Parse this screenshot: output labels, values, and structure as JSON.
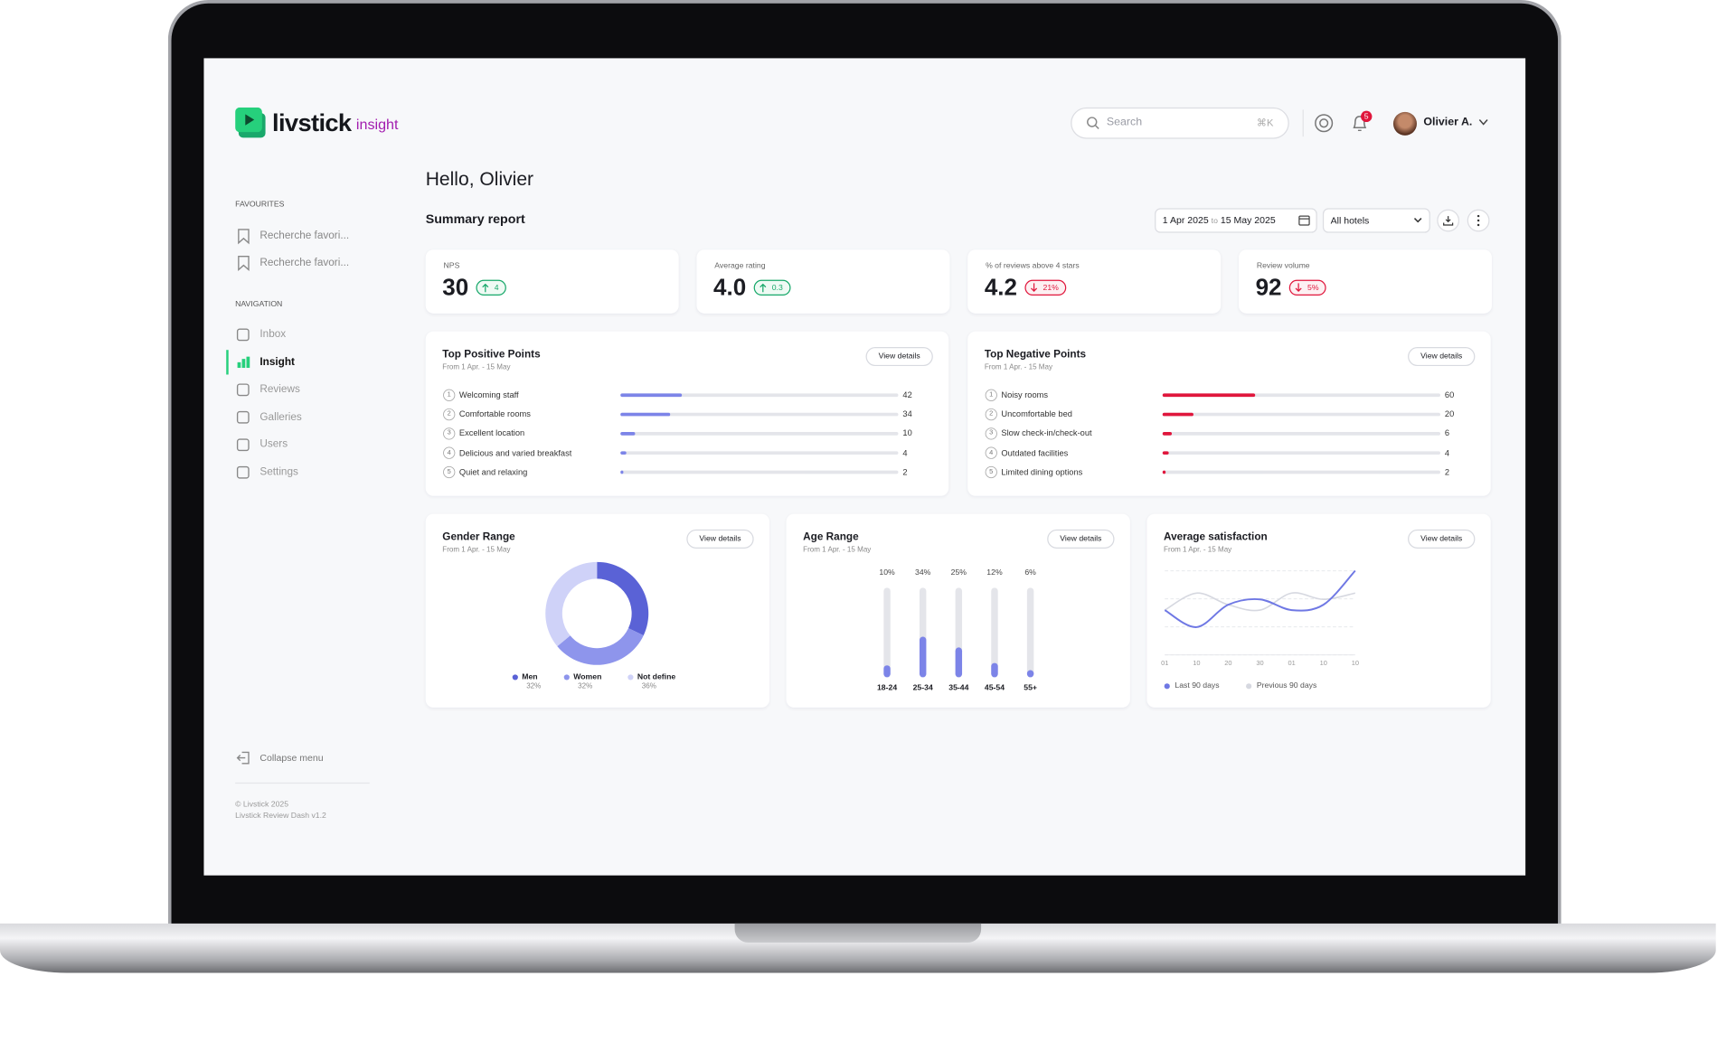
{
  "brand": {
    "name": "livstick",
    "product": "insight"
  },
  "header": {
    "search_placeholder": "Search",
    "shortcut": "⌘K",
    "notification_count": 5,
    "user": "Olivier A."
  },
  "sidebar": {
    "favourites_title": "FAVOURITES",
    "favourites": [
      "Recherche favori...",
      "Recherche favori..."
    ],
    "navigation_title": "NAVIGATION",
    "navigation": [
      "Inbox",
      "Insight",
      "Reviews",
      "Galleries",
      "Users",
      "Settings"
    ],
    "collapse": "Collapse menu",
    "footer": [
      "© Livstick 2025",
      "Livstick Review Dash v1.2"
    ]
  },
  "greeting": "Hello, Olivier",
  "report": {
    "title": "Summary report",
    "date_from": "1 Apr 2025",
    "date_joiner": "to",
    "date_to": "15 May 2025",
    "hotel_filter": "All hotels"
  },
  "kpis": [
    {
      "label": "NPS",
      "value": 30,
      "change": "4",
      "direction": "up"
    },
    {
      "label": "Average rating",
      "value": "4.0",
      "change": "0.3",
      "direction": "up"
    },
    {
      "label": "% of reviews above 4 stars",
      "value": "4.2",
      "change": "21%",
      "direction": "down"
    },
    {
      "label": "Review volume",
      "value": 92,
      "change": "5%",
      "direction": "down"
    }
  ],
  "positive_points": {
    "type": "bar",
    "title": "Top Positive Points",
    "subtitle": "From 1 Apr. - 15 May",
    "button": "View details",
    "color": "#7c84e8",
    "xlim": [
      0,
      190
    ],
    "ranks": [
      1,
      2,
      3,
      4,
      5
    ],
    "categories": [
      "Welcoming staff",
      "Comfortable rooms",
      "Excellent location",
      "Delicious and varied breakfast",
      "Quiet and relaxing"
    ],
    "values": [
      42,
      34,
      10,
      4,
      2
    ]
  },
  "negative_points": {
    "type": "bar",
    "title": "Top Negative Points",
    "subtitle": "From 1 Apr. - 15 May",
    "button": "View details",
    "color": "#e0163c",
    "xlim": [
      0,
      180
    ],
    "ranks": [
      1,
      2,
      3,
      4,
      5
    ],
    "categories": [
      "Noisy rooms",
      "Uncomfortable bed",
      "Slow check-in/check-out",
      "Outdated facilities",
      "Limited dining options"
    ],
    "values": [
      60,
      20,
      6,
      4,
      2
    ]
  },
  "gender_range": {
    "type": "donut",
    "title": "Gender Range",
    "subtitle": "From 1 Apr. - 15 May",
    "button": "View details",
    "categories": [
      "Men",
      "Women",
      "Not define"
    ],
    "values": [
      32,
      32,
      36
    ],
    "value_labels": [
      "32%",
      "32%",
      "36%"
    ],
    "colors": [
      "#5a62d6",
      "#8e95ec",
      "#cfd2f8"
    ]
  },
  "age_range": {
    "type": "bar",
    "title": "Age Range",
    "subtitle": "From 1 Apr. - 15 May",
    "button": "View details",
    "categories": [
      "18-24",
      "25-34",
      "35-44",
      "45-54",
      "55+"
    ],
    "values": [
      10,
      34,
      25,
      12,
      6
    ],
    "value_labels": [
      "10%",
      "34%",
      "25%",
      "12%",
      "6%"
    ],
    "color": "#7c84e8",
    "ylim": [
      0,
      75
    ]
  },
  "average_satisfaction": {
    "type": "line",
    "title": "Average satisfaction",
    "subtitle": "From 1 Apr. - 15 May",
    "button": "View details",
    "categories": [
      "01",
      "10",
      "20",
      "30",
      "01",
      "10",
      "10"
    ],
    "ylim": [
      0,
      100
    ],
    "series": [
      {
        "name": "Last 90 days",
        "color": "#6f78e4",
        "values": [
          50,
          31,
          56,
          62,
          50,
          56,
          94
        ]
      },
      {
        "name": "Previous 90 days",
        "color": "#d6d8e0",
        "values": [
          50,
          69,
          56,
          50,
          69,
          62,
          69
        ]
      }
    ]
  }
}
